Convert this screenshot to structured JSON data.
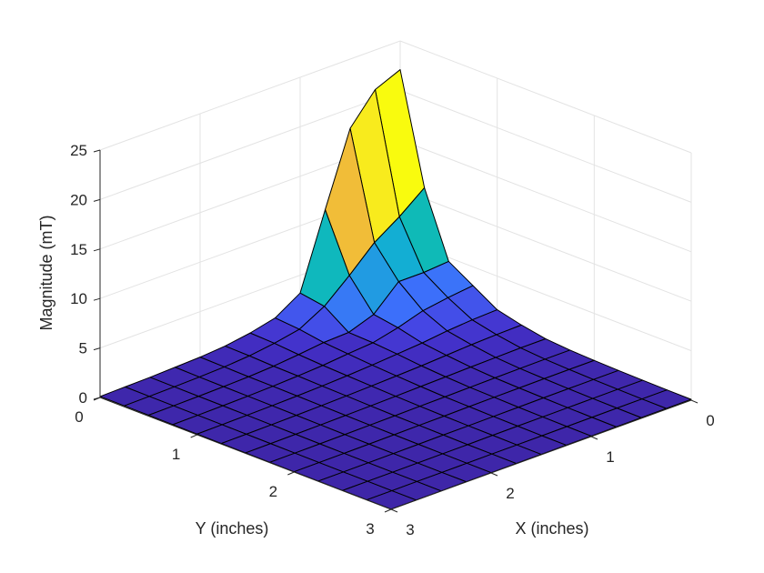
{
  "chart_data": {
    "type": "surface",
    "title": "",
    "xlabel": "X (inches)",
    "ylabel": "Y (inches)",
    "zlabel": "Magnitude (mT)",
    "xlim": [
      0,
      3
    ],
    "ylim": [
      0,
      3
    ],
    "zlim": [
      0,
      25
    ],
    "x": [
      0,
      0.25,
      0.5,
      0.75,
      1,
      1.25,
      1.5,
      1.75,
      2,
      2.25,
      2.5,
      2.75,
      3
    ],
    "y": [
      0,
      0.25,
      0.5,
      0.75,
      1,
      1.25,
      1.5,
      1.75,
      2,
      2.25,
      2.5,
      2.75,
      3
    ],
    "x_ticks": [
      "0",
      "1",
      "2",
      "3"
    ],
    "y_ticks": [
      "0",
      "1",
      "2",
      "3"
    ],
    "z_ticks": [
      "0",
      "5",
      "10",
      "15",
      "20",
      "25"
    ],
    "colormap": "parula",
    "grid": true,
    "z": [
      [
        22.1,
        21.0,
        18.0,
        10.7,
        3.2,
        1.6,
        1.0,
        0.6,
        0.4,
        0.3,
        0.2,
        0.15,
        0.1
      ],
      [
        11.1,
        9.1,
        7.4,
        5.0,
        2.8,
        1.4,
        0.9,
        0.55,
        0.35,
        0.25,
        0.18,
        0.13,
        0.1
      ],
      [
        4.6,
        4.4,
        4.4,
        2.0,
        1.1,
        1.0,
        0.7,
        0.45,
        0.3,
        0.22,
        0.16,
        0.12,
        0.09
      ],
      [
        3.1,
        2.8,
        2.4,
        1.6,
        1.0,
        0.8,
        0.55,
        0.4,
        0.28,
        0.2,
        0.15,
        0.11,
        0.08
      ],
      [
        1.6,
        1.5,
        1.3,
        1.0,
        0.8,
        0.6,
        0.45,
        0.33,
        0.24,
        0.18,
        0.13,
        0.1,
        0.07
      ],
      [
        1.0,
        0.95,
        0.85,
        0.7,
        0.55,
        0.45,
        0.35,
        0.27,
        0.2,
        0.15,
        0.11,
        0.08,
        0.06
      ],
      [
        0.55,
        0.55,
        0.5,
        0.45,
        0.38,
        0.32,
        0.26,
        0.2,
        0.16,
        0.12,
        0.09,
        0.07,
        0.05
      ],
      [
        0.35,
        0.35,
        0.33,
        0.3,
        0.26,
        0.22,
        0.19,
        0.15,
        0.12,
        0.09,
        0.07,
        0.05,
        0.04
      ],
      [
        0.25,
        0.25,
        0.24,
        0.22,
        0.2,
        0.17,
        0.14,
        0.12,
        0.09,
        0.07,
        0.05,
        0.04,
        0.03
      ],
      [
        0.18,
        0.18,
        0.17,
        0.16,
        0.14,
        0.12,
        0.1,
        0.09,
        0.07,
        0.05,
        0.04,
        0.03,
        0.03
      ],
      [
        0.13,
        0.13,
        0.12,
        0.11,
        0.1,
        0.09,
        0.08,
        0.06,
        0.05,
        0.04,
        0.03,
        0.03,
        0.02
      ],
      [
        0.1,
        0.1,
        0.09,
        0.08,
        0.07,
        0.06,
        0.05,
        0.05,
        0.04,
        0.03,
        0.03,
        0.02,
        0.02
      ],
      [
        0.08,
        0.08,
        0.07,
        0.06,
        0.05,
        0.05,
        0.04,
        0.04,
        0.03,
        0.03,
        0.02,
        0.02,
        0.02
      ]
    ]
  }
}
